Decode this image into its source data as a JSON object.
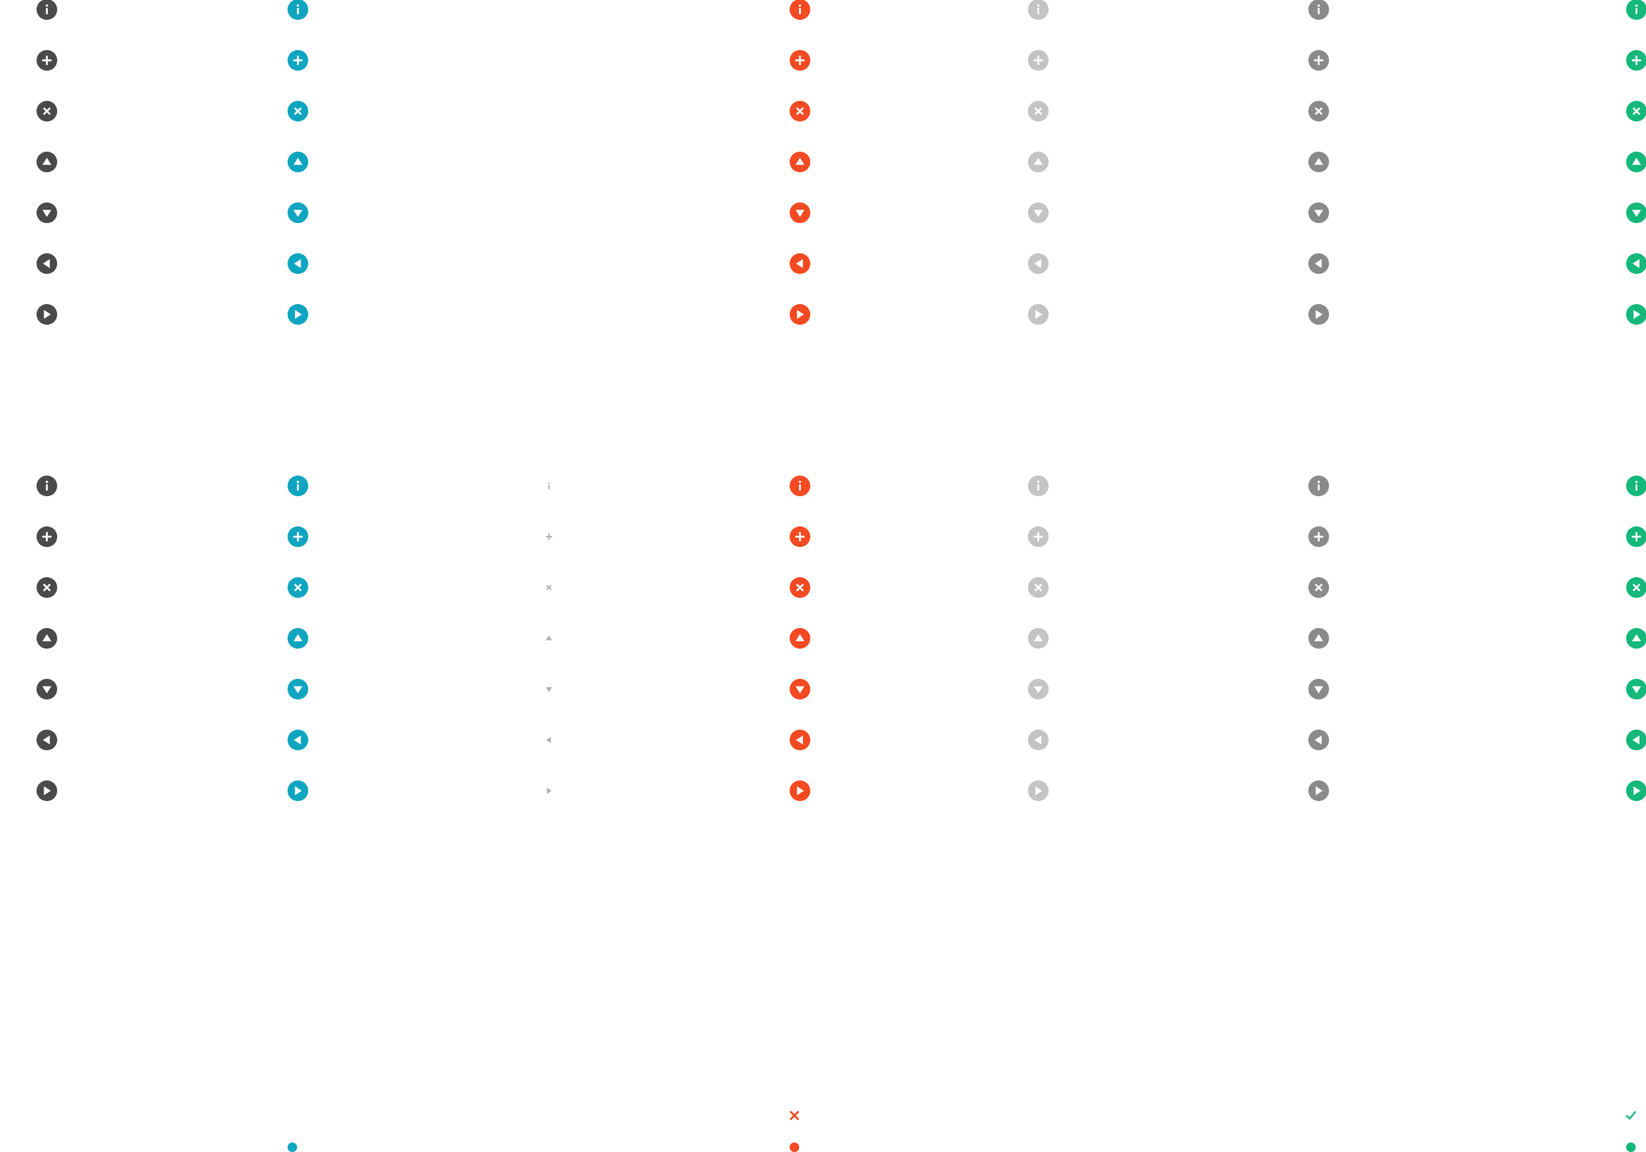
{
  "icon_set": [
    "info-icon",
    "plus-icon",
    "close-icon",
    "arrow-up-icon",
    "arrow-down-icon",
    "arrow-left-icon",
    "arrow-right-icon"
  ],
  "colors": {
    "dark": "#4a4a4a",
    "teal": "#0ea5c0",
    "red": "#f44a22",
    "light_gray": "#c4c4c4",
    "gray": "#8a8a8a",
    "green": "#14b87a",
    "glyph_gray": "#b0b0b0"
  },
  "groups": [
    {
      "name": "icon-group-top",
      "columns": [
        {
          "variant": "dark",
          "style": "circle"
        },
        {
          "variant": "teal",
          "style": "circle"
        },
        {
          "variant": "red",
          "style": "circle"
        },
        {
          "variant": "light_gray",
          "style": "circle"
        },
        {
          "variant": "gray",
          "style": "circle"
        },
        {
          "variant": "green",
          "style": "circle"
        }
      ]
    },
    {
      "name": "icon-group-bottom",
      "columns": [
        {
          "variant": "dark",
          "style": "circle"
        },
        {
          "variant": "teal",
          "style": "circle"
        },
        {
          "variant": "glyph_gray",
          "style": "bare"
        },
        {
          "variant": "red",
          "style": "circle"
        },
        {
          "variant": "light_gray",
          "style": "circle"
        },
        {
          "variant": "gray",
          "style": "circle"
        },
        {
          "variant": "green",
          "style": "circle"
        }
      ]
    }
  ],
  "status_marks": [
    {
      "icon": "x-mark-icon",
      "variant": "red"
    },
    {
      "icon": "check-mark-icon",
      "variant": "green"
    }
  ],
  "status_dots": [
    {
      "icon": "dot-icon",
      "variant": "teal"
    },
    {
      "icon": "dot-icon",
      "variant": "red"
    },
    {
      "icon": "dot-icon",
      "variant": "green"
    }
  ]
}
